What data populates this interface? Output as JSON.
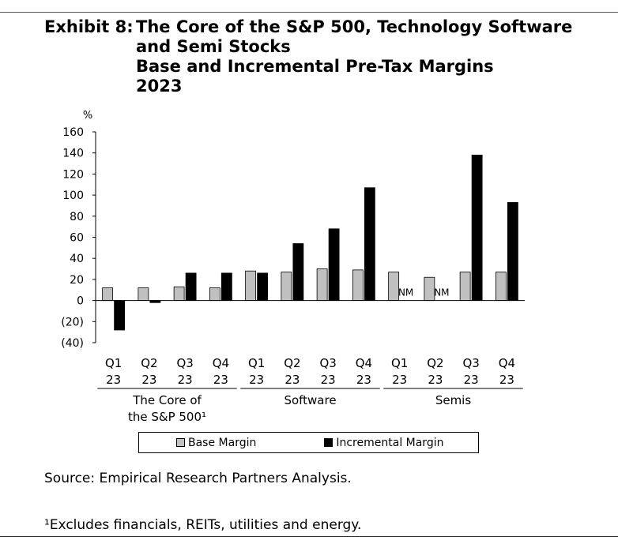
{
  "title": {
    "label": "Exhibit 8:",
    "line1": "The Core of the S&P 500, Technology Software",
    "line2": "and Semi Stocks",
    "line3": "Base and Incremental Pre-Tax Margins",
    "line4": "2023"
  },
  "chart_data": {
    "type": "bar",
    "ylabel": "%",
    "ylim": [
      -40,
      160
    ],
    "yticks": [
      160,
      140,
      120,
      100,
      80,
      60,
      40,
      20,
      0,
      -20,
      -40
    ],
    "ytick_labels": [
      "160",
      "140",
      "120",
      "100",
      "80",
      "60",
      "40",
      "20",
      "0",
      "(20)",
      "(40)"
    ],
    "categories": [
      {
        "q": "Q1",
        "y": "23"
      },
      {
        "q": "Q2",
        "y": "23"
      },
      {
        "q": "Q3",
        "y": "23"
      },
      {
        "q": "Q4",
        "y": "23"
      },
      {
        "q": "Q1",
        "y": "23"
      },
      {
        "q": "Q2",
        "y": "23"
      },
      {
        "q": "Q3",
        "y": "23"
      },
      {
        "q": "Q4",
        "y": "23"
      },
      {
        "q": "Q1",
        "y": "23"
      },
      {
        "q": "Q2",
        "y": "23"
      },
      {
        "q": "Q3",
        "y": "23"
      },
      {
        "q": "Q4",
        "y": "23"
      }
    ],
    "groups": [
      {
        "lines": [
          "The Core of",
          "the S&P 500¹"
        ],
        "start": 0,
        "end": 3
      },
      {
        "lines": [
          "Software"
        ],
        "start": 4,
        "end": 7
      },
      {
        "lines": [
          "Semis"
        ],
        "start": 8,
        "end": 11
      }
    ],
    "series": [
      {
        "name": "Base Margin",
        "color": "#c0c0c0",
        "values": [
          12,
          12,
          13,
          12,
          28,
          27,
          30,
          29,
          27,
          22,
          27,
          27
        ]
      },
      {
        "name": "Incremental Margin",
        "color": "#000000",
        "values": [
          -28,
          -2,
          26,
          26,
          26,
          54,
          68,
          107,
          null,
          null,
          138,
          93
        ]
      }
    ],
    "annotations": [
      {
        "text": "NM",
        "category": 8
      },
      {
        "text": "NM",
        "category": 9
      }
    ]
  },
  "source": "Source: Empirical Research Partners Analysis.",
  "footnote": "¹Excludes financials, REITs, utilities and energy."
}
